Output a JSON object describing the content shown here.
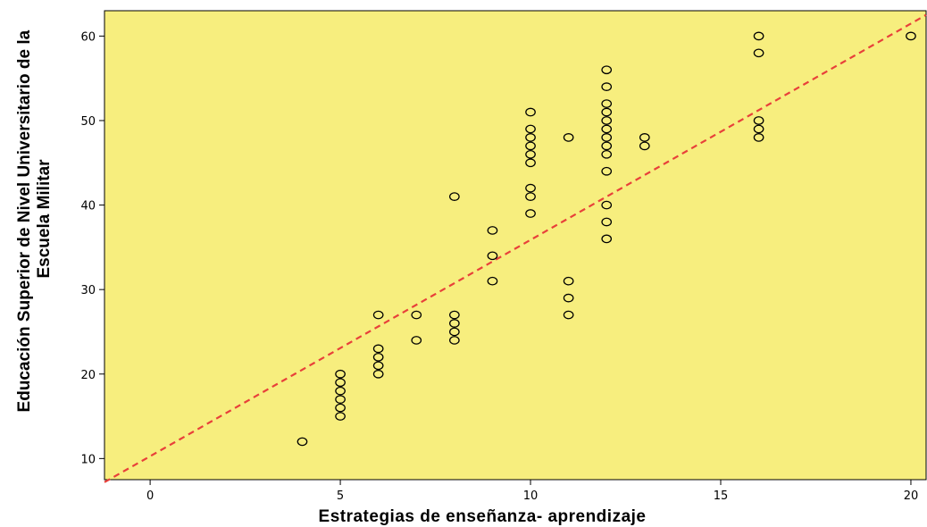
{
  "chart_data": {
    "type": "scatter",
    "title": "",
    "xlabel": "Estrategias de enseñanza- aprendizaje",
    "ylabel_lines": [
      "Educación Superior de Nivel Universitario de la",
      "Escuela Militar"
    ],
    "xlim": [
      -1.2,
      20.4
    ],
    "ylim": [
      7.5,
      63.0
    ],
    "xticks": [
      0,
      5,
      10,
      15,
      20
    ],
    "yticks": [
      10,
      20,
      30,
      40,
      50,
      60
    ],
    "grid": false,
    "background_color": "#f7ee7e",
    "marker_color": "#000000",
    "marker": "open-circle",
    "reference_line": {
      "style": "dashed",
      "color": "#e8403a",
      "x": [
        -1.2,
        20.4
      ],
      "y": [
        7.2,
        62.5
      ]
    },
    "points": [
      [
        4,
        12
      ],
      [
        5,
        15
      ],
      [
        5,
        16
      ],
      [
        5,
        17
      ],
      [
        5,
        18
      ],
      [
        5,
        19
      ],
      [
        5,
        20
      ],
      [
        6,
        20
      ],
      [
        6,
        21
      ],
      [
        6,
        22
      ],
      [
        6,
        23
      ],
      [
        6,
        27
      ],
      [
        7,
        24
      ],
      [
        7,
        27
      ],
      [
        8,
        24
      ],
      [
        8,
        25
      ],
      [
        8,
        26
      ],
      [
        8,
        27
      ],
      [
        8,
        41
      ],
      [
        9,
        31
      ],
      [
        9,
        34
      ],
      [
        9,
        37
      ],
      [
        10,
        39
      ],
      [
        10,
        41
      ],
      [
        10,
        42
      ],
      [
        10,
        45
      ],
      [
        10,
        46
      ],
      [
        10,
        47
      ],
      [
        10,
        48
      ],
      [
        10,
        49
      ],
      [
        10,
        51
      ],
      [
        11,
        27
      ],
      [
        11,
        29
      ],
      [
        11,
        31
      ],
      [
        11,
        48
      ],
      [
        12,
        36
      ],
      [
        12,
        38
      ],
      [
        12,
        40
      ],
      [
        12,
        44
      ],
      [
        12,
        46
      ],
      [
        12,
        47
      ],
      [
        12,
        48
      ],
      [
        12,
        49
      ],
      [
        12,
        50
      ],
      [
        12,
        51
      ],
      [
        12,
        52
      ],
      [
        12,
        54
      ],
      [
        12,
        56
      ],
      [
        13,
        47
      ],
      [
        13,
        48
      ],
      [
        16,
        48
      ],
      [
        16,
        49
      ],
      [
        16,
        50
      ],
      [
        16,
        58
      ],
      [
        16,
        60
      ],
      [
        20,
        60
      ]
    ]
  }
}
